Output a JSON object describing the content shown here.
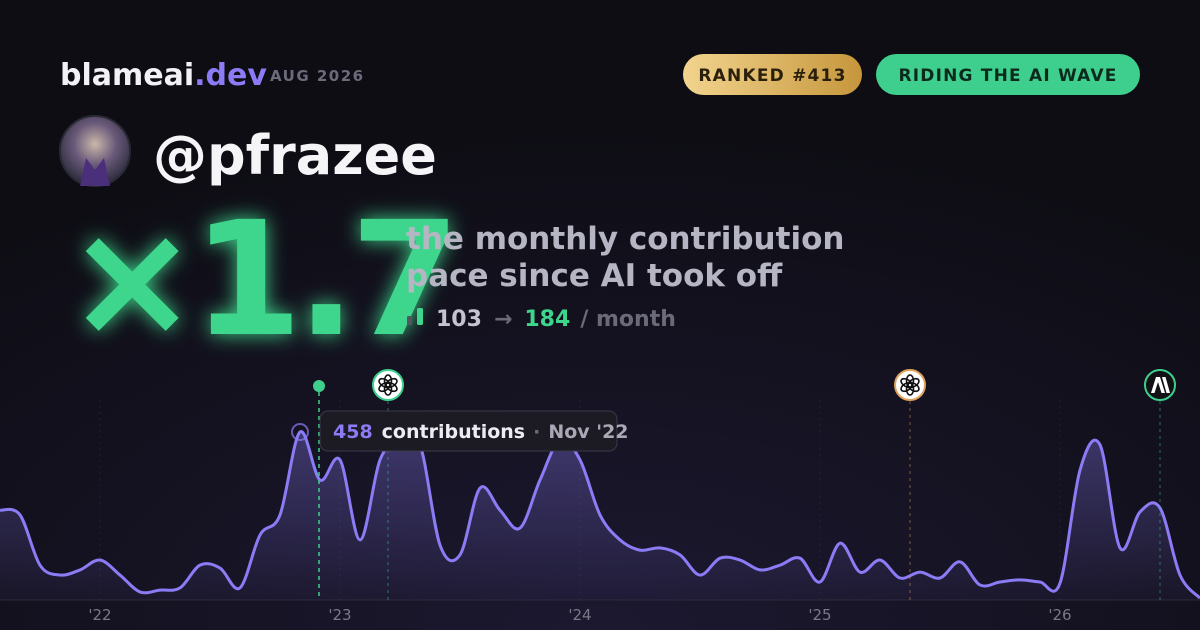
{
  "header": {
    "brand": "blameai",
    "brand_tld": ".dev",
    "date": "AUG 2026",
    "badges": [
      "RANKED #413",
      "RIDING THE AI WAVE"
    ]
  },
  "profile": {
    "username": "@pfrazee"
  },
  "headline": {
    "multiplier": "×1.7",
    "description": [
      "the monthly contribution",
      "pace since AI took off"
    ],
    "before": 103,
    "arrow": "→",
    "after": 184,
    "unit": "/ month"
  },
  "chart": {
    "type": "area",
    "color": "#8b7cf6",
    "categories": [
      null,
      null,
      null,
      null,
      null,
      "'22",
      null,
      null,
      null,
      null,
      null,
      null,
      null,
      null,
      null,
      null,
      null,
      "'23",
      null,
      null,
      null,
      null,
      null,
      null,
      null,
      null,
      null,
      null,
      null,
      "'24",
      null,
      null,
      null,
      null,
      null,
      null,
      null,
      null,
      null,
      null,
      null,
      "'25",
      null,
      null,
      null,
      null,
      null,
      null,
      null,
      null,
      null,
      null,
      null,
      "'26",
      null,
      null,
      null,
      null,
      null,
      null,
      null
    ],
    "values": [
      245,
      232,
      95,
      68,
      82,
      109,
      68,
      22,
      27,
      33,
      95,
      87,
      33,
      177,
      232,
      458,
      327,
      382,
      164,
      382,
      436,
      423,
      150,
      123,
      305,
      245,
      196,
      327,
      436,
      382,
      232,
      164,
      136,
      142,
      123,
      68,
      114,
      109,
      82,
      95,
      114,
      49,
      155,
      76,
      109,
      60,
      76,
      60,
      104,
      41,
      49,
      55,
      49,
      46,
      354,
      423,
      142,
      240,
      251,
      68,
      5
    ],
    "tooltip": {
      "label": "contributions",
      "separator": "·",
      "date": "Nov '22"
    }
  }
}
